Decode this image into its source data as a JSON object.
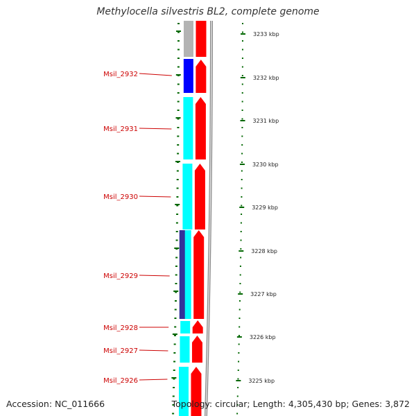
{
  "title": "Methylocella silvestris BL2, complete genome",
  "accession_text": "Accession: NC_011666",
  "topology_text": "Topology: circular; Length: 4,305,430 bp; Genes: 3,872",
  "colors": {
    "forward_strand": "#ff0000",
    "gene_cyan": "#00ffff",
    "gene_blue": "#0000ff",
    "gene_navy": "#333399",
    "gene_gray": "#b3b3b3",
    "tick_green": "#006600",
    "label_red": "#cc0000"
  },
  "chart_data": {
    "type": "genome-map",
    "scale_ticks": [
      "3233 kbp",
      "3232 kbp",
      "3231 kbp",
      "3230 kbp",
      "3229 kbp",
      "3228 kbp",
      "3227 kbp",
      "3226 kbp",
      "3225 kbp"
    ],
    "gene_labels": [
      "Msil_2932",
      "Msil_2931",
      "Msil_2930",
      "Msil_2929",
      "Msil_2928",
      "Msil_2927",
      "Msil_2926"
    ]
  }
}
